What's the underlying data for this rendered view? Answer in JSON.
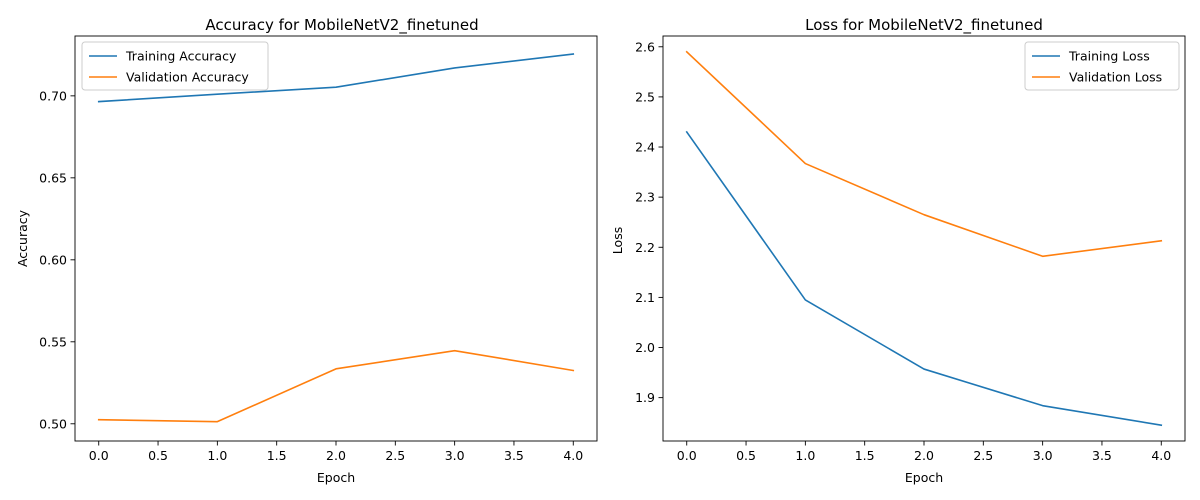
{
  "chart_data": [
    {
      "type": "line",
      "title": "Accuracy for MobileNetV2_finetuned",
      "xlabel": "Epoch",
      "ylabel": "Accuracy",
      "xlim": [
        -0.2,
        4.2
      ],
      "ylim": [
        0.4895,
        0.7365
      ],
      "xticks": [
        0.0,
        0.5,
        1.0,
        1.5,
        2.0,
        2.5,
        3.0,
        3.5,
        4.0
      ],
      "xtick_labels": [
        "0.0",
        "0.5",
        "1.0",
        "1.5",
        "2.0",
        "2.5",
        "3.0",
        "3.5",
        "4.0"
      ],
      "yticks": [
        0.5,
        0.55,
        0.6,
        0.65,
        0.7
      ],
      "ytick_labels": [
        "0.50",
        "0.55",
        "0.60",
        "0.65",
        "0.70"
      ],
      "grid": false,
      "legend_position": "top-left",
      "x": [
        0,
        1,
        2,
        3,
        4
      ],
      "series": [
        {
          "name": "Training Accuracy",
          "color": "#1f77b4",
          "values": [
            0.6965,
            0.701,
            0.7053,
            0.717,
            0.7255
          ]
        },
        {
          "name": "Validation Accuracy",
          "color": "#ff7f0e",
          "values": [
            0.5025,
            0.5013,
            0.5335,
            0.5446,
            0.5325
          ]
        }
      ]
    },
    {
      "type": "line",
      "title": "Loss for MobileNetV2_finetuned",
      "xlabel": "Epoch",
      "ylabel": "Loss",
      "xlim": [
        -0.2,
        4.2
      ],
      "ylim": [
        1.8135,
        2.6215
      ],
      "xticks": [
        0.0,
        0.5,
        1.0,
        1.5,
        2.0,
        2.5,
        3.0,
        3.5,
        4.0
      ],
      "xtick_labels": [
        "0.0",
        "0.5",
        "1.0",
        "1.5",
        "2.0",
        "2.5",
        "3.0",
        "3.5",
        "4.0"
      ],
      "yticks": [
        1.9,
        2.0,
        2.1,
        2.2,
        2.3,
        2.4,
        2.5,
        2.6
      ],
      "ytick_labels": [
        "1.9",
        "2.0",
        "2.1",
        "2.2",
        "2.3",
        "2.4",
        "2.5",
        "2.6"
      ],
      "grid": false,
      "legend_position": "top-right",
      "x": [
        0,
        1,
        2,
        3,
        4
      ],
      "series": [
        {
          "name": "Training Loss",
          "color": "#1f77b4",
          "values": [
            2.43,
            2.095,
            1.957,
            1.884,
            1.845
          ]
        },
        {
          "name": "Validation Loss",
          "color": "#ff7f0e",
          "values": [
            2.59,
            2.367,
            2.265,
            2.182,
            2.213
          ]
        }
      ]
    }
  ]
}
